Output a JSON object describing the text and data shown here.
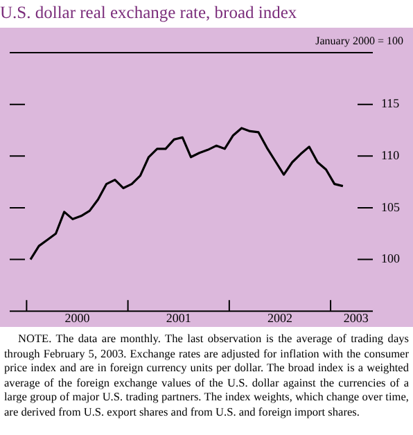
{
  "chart_data": {
    "type": "line",
    "title": "U.S. dollar real exchange rate, broad index",
    "x": [
      "2000-01-15",
      "2000-02-15",
      "2000-03-15",
      "2000-04-15",
      "2000-05-15",
      "2000-06-15",
      "2000-07-15",
      "2000-08-15",
      "2000-09-15",
      "2000-10-15",
      "2000-11-15",
      "2000-12-15",
      "2001-01-15",
      "2001-02-15",
      "2001-03-15",
      "2001-04-15",
      "2001-05-15",
      "2001-06-15",
      "2001-07-15",
      "2001-08-15",
      "2001-09-15",
      "2001-10-15",
      "2001-11-15",
      "2001-12-15",
      "2002-01-15",
      "2002-02-15",
      "2002-03-15",
      "2002-04-15",
      "2002-05-15",
      "2002-06-15",
      "2002-07-15",
      "2002-08-15",
      "2002-09-15",
      "2002-10-15",
      "2002-11-15",
      "2002-12-15",
      "2003-01-15",
      "2003-02-15"
    ],
    "series": [
      {
        "color": "#000000",
        "values": [
          100.0,
          101.3,
          101.9,
          102.5,
          104.6,
          103.9,
          104.2,
          104.7,
          105.8,
          107.3,
          107.7,
          106.9,
          107.3,
          108.1,
          109.9,
          110.7,
          110.7,
          111.6,
          111.8,
          109.9,
          110.3,
          110.6,
          111.0,
          110.7,
          112.0,
          112.7,
          112.4,
          112.3,
          110.8,
          109.5,
          108.2,
          109.4,
          110.2,
          110.9,
          109.4,
          108.7,
          107.3,
          107.1
        ]
      }
    ],
    "xlim": [
      "1999-11-01",
      "2003-06-01"
    ],
    "xticks": [
      {
        "value": "2000-01-01",
        "label": null
      },
      {
        "value": "2000-07-01",
        "label": "2000"
      },
      {
        "value": "2001-01-01",
        "label": null
      },
      {
        "value": "2001-07-01",
        "label": "2001"
      },
      {
        "value": "2002-01-01",
        "label": null
      },
      {
        "value": "2002-07-01",
        "label": "2002"
      },
      {
        "value": "2003-01-01",
        "label": null
      },
      {
        "value": "2003-04-01",
        "label": "2003"
      }
    ],
    "ylim": [
      95,
      120
    ],
    "yticks": [
      100,
      105,
      110,
      115
    ],
    "annotations": [
      "January 2000 = 100",
      "NOTE. The data are monthly. The last observation is the average of trading days through February 5, 2003. Exchange rates are adjusted for inflation with the consumer price index and are in foreign currency units per dollar. The broad index is a weighted average of the foreign exchange values of the U.S. dollar against the currencies of a large group of major U.S. trading partners. The index weights, which change over time, are derived from U.S. export shares and from U.S. and foreign import shares."
    ],
    "grid": false,
    "legend": false,
    "marker": "none",
    "line_style": "solid"
  }
}
